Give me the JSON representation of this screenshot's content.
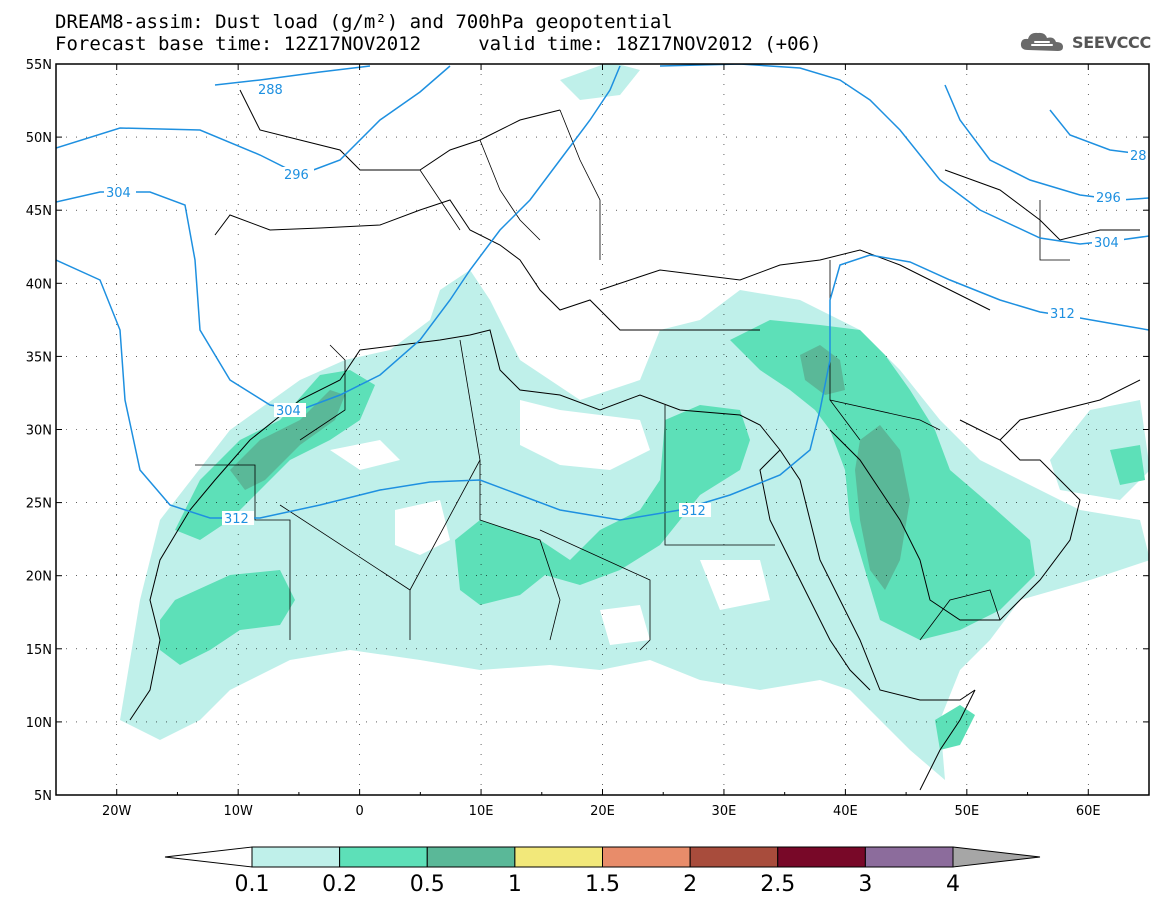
{
  "header": {
    "title_line1": "DREAM8-assim: Dust load (g/m²) and 700hPa geopotential",
    "title_line2": "Forecast base time: 12Z17NOV2012     valid time: 18Z17NOV2012 (+06)"
  },
  "logo": {
    "text": "SEEVCCC",
    "icon": "cloud-icon"
  },
  "map": {
    "lon_range": [
      -25,
      65
    ],
    "lat_range": [
      5,
      55
    ],
    "lat_ticks": [
      "55N",
      "50N",
      "45N",
      "40N",
      "35N",
      "30N",
      "25N",
      "20N",
      "15N",
      "10N",
      "5N"
    ],
    "lon_ticks": [
      "20W",
      "10W",
      "0",
      "10E",
      "20E",
      "30E",
      "40E",
      "50E",
      "60E"
    ],
    "gridlines": "dotted",
    "contour_color": "#1e90e0",
    "contour_labels": [
      "288",
      "296",
      "304",
      "304",
      "312",
      "312",
      "28",
      "296",
      "304",
      "312"
    ]
  },
  "colorbar": {
    "levels": [
      "0.1",
      "0.2",
      "0.5",
      "1",
      "1.5",
      "2",
      "2.5",
      "3",
      "4"
    ],
    "colors": [
      "#ffffff",
      "#bff0ea",
      "#5de0b8",
      "#5ab898",
      "#f2e87a",
      "#e88c6a",
      "#a84c3c",
      "#780828",
      "#8c6c9c",
      "#a6a6a6"
    ]
  }
}
